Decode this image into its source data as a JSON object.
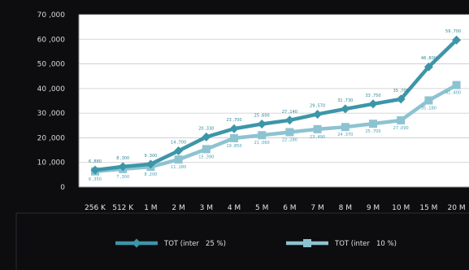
{
  "chart_data": {
    "type": "line",
    "categories": [
      "256 K",
      "512 K",
      "1 M",
      "2 M",
      "3 M",
      "4 M",
      "5 M",
      "6 M",
      "7 M",
      "8 M",
      "9 M",
      "10 M",
      "15 M",
      "20 M"
    ],
    "ylim": [
      0,
      70000
    ],
    "yticks": [
      "70 ,000",
      "60 ,000",
      "50 ,000",
      "40 ,000",
      "30 ,000",
      "20 ,000",
      "10 ,000",
      "0"
    ],
    "ytick_values": [
      70000,
      60000,
      50000,
      40000,
      30000,
      20000,
      10000,
      0
    ],
    "grid": true,
    "legend_position": "bottom",
    "series": [
      {
        "name": "TOT (inter   25 %)",
        "color": "#3c96a8",
        "marker": "diamond",
        "values": [
          6880,
          8300,
          9300,
          14700,
          20330,
          23700,
          25600,
          27140,
          29570,
          31730,
          33750,
          35700,
          48800,
          59700
        ],
        "labels": [
          "6 ,880",
          "8 ,300",
          "9 ,300",
          "14 ,700",
          "20 ,330",
          "23 ,700",
          "25 ,600",
          "27 ,140",
          "29 ,570",
          "31 ,730",
          "33 ,750",
          "35 ,700",
          "48 ,800",
          "59 ,700"
        ]
      },
      {
        "name": "TOT (inter   10 %)",
        "color": "#8dc3d1",
        "marker": "square",
        "values": [
          6350,
          7300,
          8200,
          11180,
          15390,
          19850,
          21060,
          22280,
          23490,
          24370,
          25700,
          27090,
          35180,
          41400
        ],
        "labels": [
          "6 ,350",
          "7 ,300",
          "8 ,200",
          "11 ,180",
          "15 ,390",
          "19 ,850",
          "21 ,060",
          "22 ,280",
          "23 ,490",
          "24 ,370",
          "25 ,700",
          "27 ,090",
          "35 ,180",
          "41 ,400"
        ]
      }
    ]
  }
}
